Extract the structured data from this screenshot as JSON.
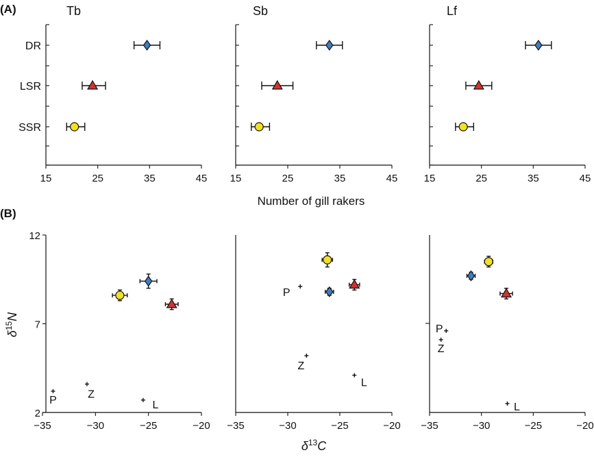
{
  "panel_labels": [
    "(A)",
    "(B)"
  ],
  "chart_data": [
    {
      "type": "scatter",
      "group": "A",
      "title": "Tb",
      "xlabel": "",
      "xlim": [
        15,
        45
      ],
      "xticks": [
        15,
        25,
        35,
        45
      ],
      "yticks": [
        "DR",
        "LSR",
        "SSR"
      ],
      "series": [
        {
          "x": 34.5,
          "xerr": [
            32,
            37
          ],
          "y": "DR",
          "marker": "diamond",
          "color": "#3a7fc1"
        },
        {
          "x": 24,
          "xerr": [
            22,
            26.5
          ],
          "y": "LSR",
          "marker": "triangle",
          "color": "#d9302c"
        },
        {
          "x": 20.5,
          "xerr": [
            19,
            22.5
          ],
          "y": "SSR",
          "marker": "circle",
          "color": "#f2e21b"
        }
      ]
    },
    {
      "type": "scatter",
      "group": "A",
      "title": "Sb",
      "xlabel": "Number of gill rakers",
      "xlim": [
        15,
        45
      ],
      "xticks": [
        15,
        25,
        35,
        45
      ],
      "yticks": [],
      "series": [
        {
          "x": 33,
          "xerr": [
            30.5,
            35.5
          ],
          "y": "DR",
          "marker": "diamond",
          "color": "#3a7fc1"
        },
        {
          "x": 23,
          "xerr": [
            20,
            26
          ],
          "y": "LSR",
          "marker": "triangle",
          "color": "#d9302c"
        },
        {
          "x": 19.5,
          "xerr": [
            18,
            21.5
          ],
          "y": "SSR",
          "marker": "circle",
          "color": "#f2e21b"
        }
      ]
    },
    {
      "type": "scatter",
      "group": "A",
      "title": "Lf",
      "xlabel": "",
      "xlim": [
        15,
        45
      ],
      "xticks": [
        15,
        25,
        35,
        45
      ],
      "yticks": [],
      "series": [
        {
          "x": 36,
          "xerr": [
            33.5,
            38.5
          ],
          "y": "DR",
          "marker": "diamond",
          "color": "#3a7fc1"
        },
        {
          "x": 24.5,
          "xerr": [
            22,
            27
          ],
          "y": "LSR",
          "marker": "triangle",
          "color": "#d9302c"
        },
        {
          "x": 21.5,
          "xerr": [
            20,
            23.5
          ],
          "y": "SSR",
          "marker": "circle",
          "color": "#f2e21b"
        }
      ]
    },
    {
      "type": "scatter",
      "group": "B",
      "ylabel": "δ15N",
      "xlabel": "",
      "xlim": [
        -35,
        -20
      ],
      "ylim": [
        2,
        12
      ],
      "xticks": [
        -35,
        -30,
        -25,
        -20
      ],
      "yticks": [
        2,
        7,
        12
      ],
      "series": [
        {
          "x": -25.0,
          "y": 9.4,
          "xerr": 0.8,
          "yerr": 0.4,
          "marker": "diamond",
          "color": "#3a7fc1"
        },
        {
          "x": -27.7,
          "y": 8.6,
          "xerr": 0.7,
          "yerr": 0.3,
          "marker": "circle",
          "color": "#f2e21b"
        },
        {
          "x": -22.8,
          "y": 8.1,
          "xerr": 0.6,
          "yerr": 0.3,
          "marker": "triangle",
          "color": "#d9302c"
        }
      ],
      "sources": [
        {
          "label": "P",
          "x": -34.0,
          "y": 3.2
        },
        {
          "label": "Z",
          "x": -30.8,
          "y": 3.6
        },
        {
          "label": "L",
          "x": -25.5,
          "y": 2.7
        }
      ]
    },
    {
      "type": "scatter",
      "group": "B",
      "ylabel": "",
      "xlabel": "δ13C",
      "xlim": [
        -35,
        -20
      ],
      "ylim": [
        2,
        12
      ],
      "xticks": [
        -35,
        -30,
        -25,
        -20
      ],
      "yticks": [],
      "series": [
        {
          "x": -26.2,
          "y": 10.6,
          "xerr": 0.5,
          "yerr": 0.4,
          "marker": "circle",
          "color": "#f2e21b"
        },
        {
          "x": -23.6,
          "y": 9.2,
          "xerr": 0.5,
          "yerr": 0.3,
          "marker": "triangle",
          "color": "#d9302c"
        },
        {
          "x": -26.0,
          "y": 8.8,
          "xerr": 0.4,
          "yerr": 0.2,
          "marker": "diamond",
          "color": "#3a7fc1"
        }
      ],
      "sources": [
        {
          "label": "P",
          "x": -28.8,
          "y": 9.1
        },
        {
          "label": "Z",
          "x": -28.2,
          "y": 5.2
        },
        {
          "label": "L",
          "x": -23.6,
          "y": 4.1
        }
      ]
    },
    {
      "type": "scatter",
      "group": "B",
      "ylabel": "",
      "xlabel": "",
      "xlim": [
        -35,
        -20
      ],
      "ylim": [
        2,
        12
      ],
      "xticks": [
        -35,
        -30,
        -25,
        -20
      ],
      "yticks": [],
      "series": [
        {
          "x": -29.3,
          "y": 10.5,
          "xerr": 0.4,
          "yerr": 0.3,
          "marker": "circle",
          "color": "#f2e21b"
        },
        {
          "x": -31.0,
          "y": 9.7,
          "xerr": 0.4,
          "yerr": 0.2,
          "marker": "diamond",
          "color": "#3a7fc1"
        },
        {
          "x": -27.6,
          "y": 8.7,
          "xerr": 0.6,
          "yerr": 0.3,
          "marker": "triangle",
          "color": "#d9302c"
        }
      ],
      "sources": [
        {
          "label": "P",
          "x": -33.4,
          "y": 6.6
        },
        {
          "label": "Z",
          "x": -33.9,
          "y": 6.1
        },
        {
          "label": "L",
          "x": -27.5,
          "y": 2.5
        }
      ]
    }
  ]
}
